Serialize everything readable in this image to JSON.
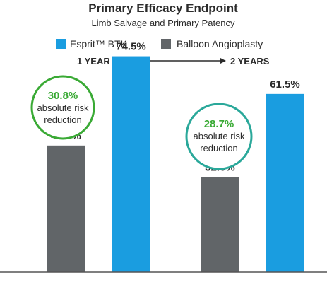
{
  "colors": {
    "series_esprit": "#1a9de0",
    "series_balloon": "#616568",
    "circle_border_1": "#3aaa35",
    "circle_border_2": "#2aa89a",
    "rr_text": "#3aaa35",
    "axis": "#555555"
  },
  "chart_data": {
    "type": "bar",
    "title": "Primary Efficacy Endpoint",
    "subtitle": "Limb Salvage and Primary Patency",
    "categories": [
      "1 YEAR",
      "2 YEARS"
    ],
    "series": [
      {
        "name": "Balloon Angioplasty",
        "values": [
          43.7,
          32.8
        ],
        "labels": [
          "43.7%",
          "32.8%"
        ]
      },
      {
        "name": "Esprit™ BTK",
        "values": [
          74.5,
          61.5
        ],
        "labels": [
          "74.5%",
          "61.5%"
        ]
      }
    ],
    "legend": [
      "Esprit™ BTK",
      "Balloon Angioplasty"
    ],
    "legend_position": "top",
    "annotations": [
      {
        "value": "30.8%",
        "line1": "absolute risk",
        "line2": "reduction"
      },
      {
        "value": "28.7%",
        "line1": "absolute risk",
        "line2": "reduction"
      }
    ],
    "ylim": [
      0,
      100
    ],
    "grid": false
  }
}
